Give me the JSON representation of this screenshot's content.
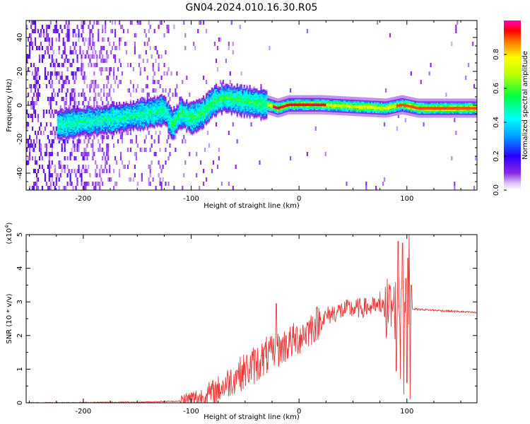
{
  "title": "GN04.2024.010.16.30.R05",
  "colorbar": {
    "label": "Normalized spectral amplitude",
    "ticks": [
      "0.0",
      "0.2",
      "0.4",
      "0.6",
      "0.8"
    ],
    "tick_values": [
      0.0,
      0.2,
      0.4,
      0.6,
      0.8
    ],
    "range": [
      0,
      1
    ]
  },
  "chart_data": [
    {
      "type": "heatmap",
      "name": "spectrogram",
      "xlabel": "Height of straight line (km)",
      "ylabel": "Frequency (Hz)",
      "xlim": [
        -253,
        165
      ],
      "ylim": [
        -50,
        50
      ],
      "xticks": [
        -200,
        -100,
        0,
        100
      ],
      "xtick_labels": [
        "-200",
        "-100",
        "0",
        "100"
      ],
      "yticks": [
        -40,
        -20,
        0,
        20,
        40
      ],
      "ytick_labels": [
        "-40",
        "-20",
        "0",
        "20",
        "40"
      ],
      "ridge_center_hz": {
        "x": [
          -225,
          -200,
          -180,
          -160,
          -140,
          -125,
          -118,
          -110,
          -100,
          -90,
          -80,
          -70,
          -60,
          -50,
          -40,
          -30,
          -20,
          -10,
          0,
          20,
          50,
          80,
          95,
          110,
          165
        ],
        "y": [
          -12,
          -10,
          -9,
          -7,
          -5,
          -3,
          -12,
          -5,
          -8,
          -5,
          2,
          4,
          3,
          2,
          1,
          0,
          -2,
          0,
          0,
          0,
          -1,
          -2,
          0,
          -2,
          -2
        ]
      }
    },
    {
      "type": "line",
      "name": "snr",
      "xlabel": "Height of straight line (km)",
      "ylabel": "SNR (10 * v/v)",
      "y_multiplier": "(x10",
      "y_multiplier_exp": "4",
      "y_multiplier_close": ")",
      "xlim": [
        -253,
        165
      ],
      "ylim": [
        0,
        5
      ],
      "xticks": [
        -200,
        -100,
        0,
        100
      ],
      "xtick_labels": [
        "-200",
        "-100",
        "0",
        "100"
      ],
      "yticks": [
        0,
        1,
        2,
        3,
        4,
        5
      ],
      "ytick_labels": [
        "0",
        "1",
        "2",
        "3",
        "4",
        "5"
      ],
      "color": "#e83a3a",
      "envelope": {
        "x": [
          -253,
          -150,
          -110,
          -100,
          -90,
          -80,
          -70,
          -60,
          -50,
          -40,
          -30,
          -20,
          -10,
          0,
          10,
          20,
          30,
          40,
          50,
          60,
          70,
          80,
          90,
          100,
          105,
          110,
          165
        ],
        "y": [
          0.0,
          0.02,
          0.05,
          0.1,
          0.15,
          0.3,
          0.5,
          0.75,
          0.95,
          1.15,
          1.35,
          1.55,
          1.75,
          1.95,
          2.2,
          2.45,
          2.65,
          2.75,
          2.8,
          2.82,
          2.85,
          2.8,
          2.8,
          2.8,
          2.8,
          2.78,
          2.68
        ]
      },
      "spikes": {
        "x": [
          -57,
          -35,
          -21,
          -12,
          62,
          75,
          80,
          88,
          90,
          92,
          94,
          95,
          96,
          97,
          98,
          99,
          100,
          101,
          102,
          103,
          104
        ],
        "y": [
          0.95,
          1.4,
          2.95,
          2.0,
          3.1,
          3.3,
          3.45,
          3.45,
          0.95,
          4.8,
          0.7,
          3.4,
          4.75,
          0.25,
          3.0,
          3.7,
          0.6,
          4.3,
          5.0,
          0.1,
          3.5
        ]
      }
    }
  ]
}
